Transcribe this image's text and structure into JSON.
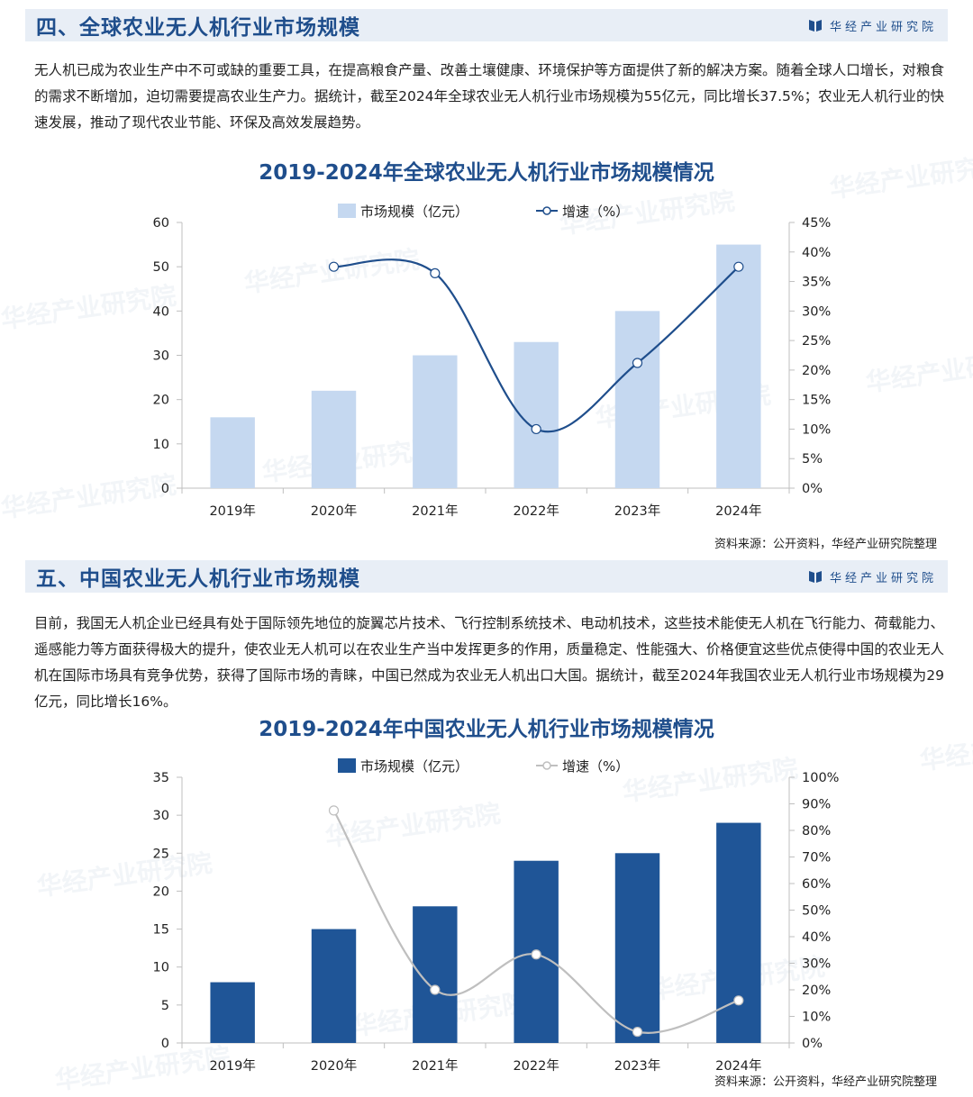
{
  "brand": "华经产业研究院",
  "section1": {
    "title": "四、全球农业无人机行业市场规模",
    "paragraph": "无人机已成为农业生产中不可或缺的重要工具，在提高粮食产量、改善土壤健康、环境保护等方面提供了新的解决方案。随着全球人口增长，对粮食的需求不断增加，迫切需要提高农业生产力。据统计，截至2024年全球农业无人机行业市场规模为55亿元，同比增长37.5%；农业无人机行业的快速发展，推动了现代农业节能、环保及高效发展趋势。",
    "source": "资料来源：公开资料，华经产业研究院整理"
  },
  "section2": {
    "title": "五、中国农业无人机行业市场规模",
    "paragraph": "目前，我国无人机企业已经具有处于国际领先地位的旋翼芯片技术、飞行控制系统技术、电动机技术，这些技术能使无人机在飞行能力、荷载能力、遥感能力等方面获得极大的提升，使农业无人机可以在农业生产当中发挥更多的作用，质量稳定、性能强大、价格便宜这些优点使得中国的农业无人机在国际市场具有竞争优势，获得了国际市场的青睐，中国已然成为农业无人机出口大国。据统计，截至2024年我国农业无人机行业市场规模为29亿元，同比增长16%。",
    "source": "资料来源：公开资料，华经产业研究院整理"
  },
  "chart_data": [
    {
      "type": "bar",
      "title": "2019-2024年全球农业无人机行业市场规模情况",
      "categories": [
        "2019年",
        "2020年",
        "2021年",
        "2022年",
        "2023年",
        "2024年"
      ],
      "series": [
        {
          "name": "市场规模（亿元）",
          "type": "bar",
          "axis": "left",
          "color": "#c5d8f0",
          "values": [
            16,
            22,
            30,
            33,
            40,
            55
          ]
        },
        {
          "name": "增速（%）",
          "type": "line",
          "axis": "right",
          "color": "#1f4e8c",
          "values": [
            null,
            37.5,
            36.4,
            10.0,
            21.2,
            37.5
          ]
        }
      ],
      "ylim": [
        0,
        60
      ],
      "yticks": [
        0,
        10,
        20,
        30,
        40,
        50,
        60
      ],
      "y2lim": [
        0,
        45
      ],
      "y2ticks": [
        "0%",
        "5%",
        "10%",
        "15%",
        "20%",
        "25%",
        "30%",
        "35%",
        "40%",
        "45%"
      ],
      "legend": "top-center"
    },
    {
      "type": "bar",
      "title": "2019-2024年中国农业无人机行业市场规模情况",
      "categories": [
        "2019年",
        "2020年",
        "2021年",
        "2022年",
        "2023年",
        "2024年"
      ],
      "series": [
        {
          "name": "市场规模（亿元）",
          "type": "bar",
          "axis": "left",
          "color": "#1f5597",
          "values": [
            8,
            15,
            18,
            24,
            25,
            29
          ]
        },
        {
          "name": "增速（%）",
          "type": "line",
          "axis": "right",
          "color": "#bfbfbf",
          "values": [
            null,
            87.5,
            20.0,
            33.3,
            4.2,
            16.0
          ]
        }
      ],
      "ylim": [
        0,
        35
      ],
      "yticks": [
        0,
        5,
        10,
        15,
        20,
        25,
        30,
        35
      ],
      "y2lim": [
        0,
        100
      ],
      "y2ticks": [
        "0%",
        "10%",
        "20%",
        "30%",
        "40%",
        "50%",
        "60%",
        "70%",
        "80%",
        "90%",
        "100%"
      ],
      "legend": "top-center"
    }
  ]
}
